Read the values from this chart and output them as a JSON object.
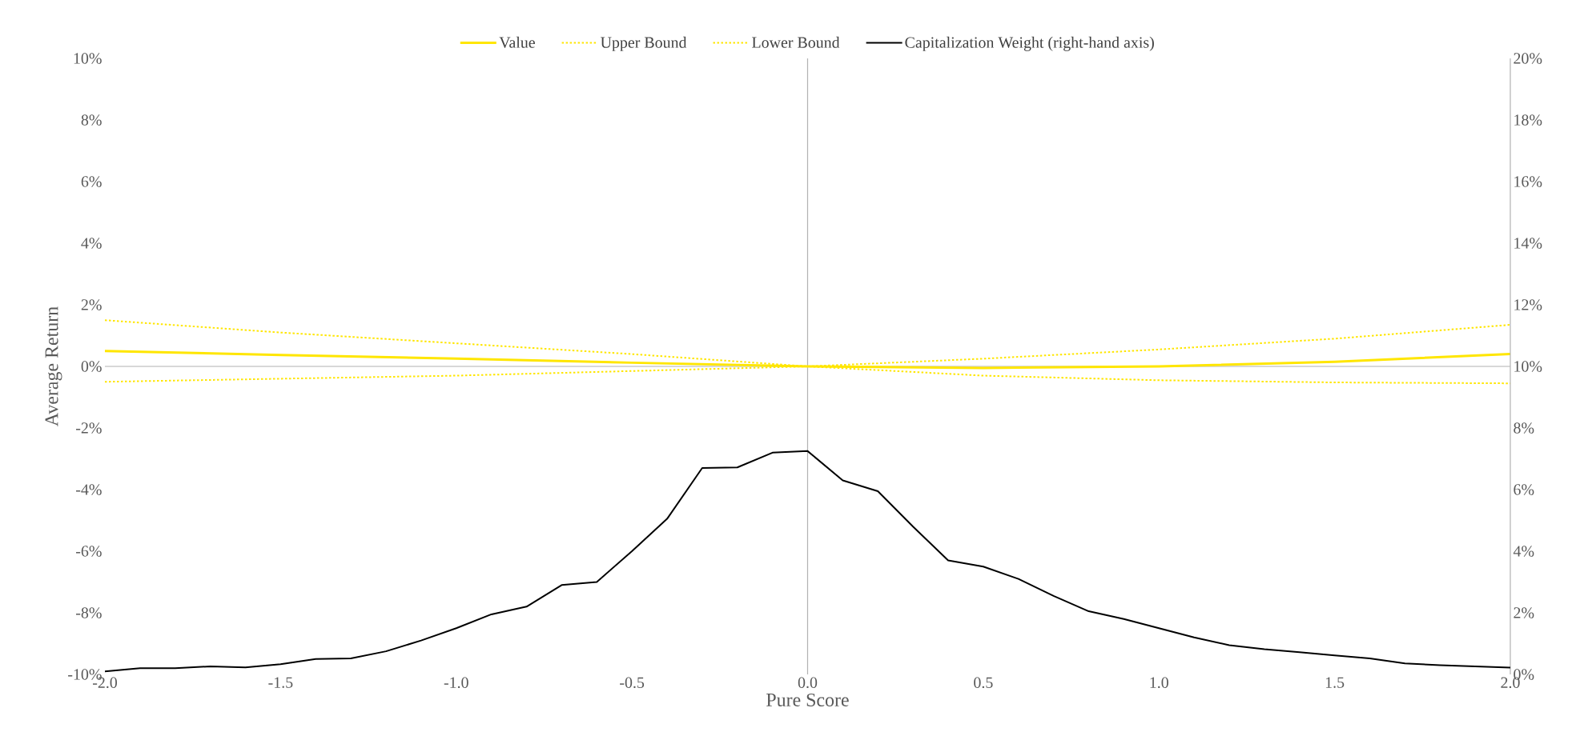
{
  "chart_data": {
    "type": "line",
    "xlabel": "Pure Score",
    "ylabel": "Average Return",
    "xlim": [
      -2,
      2
    ],
    "xticks": [
      {
        "value": -2,
        "label": "-2.0"
      },
      {
        "value": -1.5,
        "label": "-1.5"
      },
      {
        "value": -1,
        "label": "-1.0"
      },
      {
        "value": -0.5,
        "label": "-0.5"
      },
      {
        "value": 0,
        "label": "0.0"
      },
      {
        "value": 0.5,
        "label": "0.5"
      },
      {
        "value": 1,
        "label": "1.0"
      },
      {
        "value": 1.5,
        "label": "1.5"
      },
      {
        "value": 2,
        "label": "2.0"
      }
    ],
    "ylim": [
      -10,
      10
    ],
    "yticks": [
      {
        "value": -10,
        "label": "-10%"
      },
      {
        "value": -8,
        "label": "-8%"
      },
      {
        "value": -6,
        "label": "-6%"
      },
      {
        "value": -4,
        "label": "-4%"
      },
      {
        "value": -2,
        "label": "-2%"
      },
      {
        "value": 0,
        "label": "0%"
      },
      {
        "value": 2,
        "label": "2%"
      },
      {
        "value": 4,
        "label": "4%"
      },
      {
        "value": 6,
        "label": "6%"
      },
      {
        "value": 8,
        "label": "8%"
      },
      {
        "value": 10,
        "label": "10%"
      }
    ],
    "y2lim": [
      0,
      20
    ],
    "y2ticks": [
      {
        "value": 0,
        "label": "0%"
      },
      {
        "value": 2,
        "label": "2%"
      },
      {
        "value": 4,
        "label": "4%"
      },
      {
        "value": 6,
        "label": "6%"
      },
      {
        "value": 8,
        "label": "8%"
      },
      {
        "value": 10,
        "label": "10%"
      },
      {
        "value": 12,
        "label": "12%"
      },
      {
        "value": 14,
        "label": "14%"
      },
      {
        "value": 16,
        "label": "16%"
      },
      {
        "value": 18,
        "label": "18%"
      },
      {
        "value": 20,
        "label": "20%"
      }
    ],
    "legend": "top",
    "series": [
      {
        "name": "Value",
        "color": "#ffe600",
        "line_style": "solid",
        "x": [
          -2,
          -1.5,
          -1,
          -0.5,
          0,
          0.5,
          1,
          1.5,
          2
        ],
        "values": [
          0.5,
          0.37,
          0.25,
          0.12,
          0,
          -0.05,
          0,
          0.15,
          0.4
        ]
      },
      {
        "name": "Upper Bound",
        "color": "#ffe600",
        "line_style": "dotted",
        "x": [
          -2,
          -1.5,
          -1,
          -0.5,
          0,
          0.5,
          1,
          1.5,
          2
        ],
        "values": [
          1.5,
          1.1,
          0.75,
          0.4,
          0,
          0.25,
          0.55,
          0.9,
          1.35
        ]
      },
      {
        "name": "Lower Bound",
        "color": "#ffe600",
        "line_style": "dotted",
        "x": [
          -2,
          -1.5,
          -1,
          -0.5,
          0,
          0.5,
          1,
          1.5,
          2
        ],
        "values": [
          -0.5,
          -0.4,
          -0.3,
          -0.15,
          0,
          -0.3,
          -0.45,
          -0.52,
          -0.55
        ]
      },
      {
        "name": "Capitalization Weight (right-hand axis)",
        "color": "#000000",
        "line_style": "solid",
        "axis": "y2",
        "x": [
          -2,
          -1.9,
          -1.8,
          -1.7,
          -1.6,
          -1.5,
          -1.4,
          -1.3,
          -1.2,
          -1.1,
          -1,
          -0.9,
          -0.8,
          -0.7,
          -0.6,
          -0.5,
          -0.4,
          -0.3,
          -0.2,
          -0.1,
          0,
          0.1,
          0.2,
          0.3,
          0.4,
          0.5,
          0.6,
          0.7,
          0.8,
          0.9,
          1,
          1.1,
          1.2,
          1.3,
          1.4,
          1.5,
          1.6,
          1.7,
          1.8,
          1.9,
          2
        ],
        "values": [
          0.1,
          0.2,
          0.2,
          0.26,
          0.23,
          0.33,
          0.5,
          0.52,
          0.75,
          1.1,
          1.5,
          1.95,
          2.2,
          2.9,
          3.0,
          4.0,
          5.05,
          6.7,
          6.72,
          7.2,
          7.25,
          6.3,
          5.95,
          4.8,
          3.7,
          3.5,
          3.1,
          2.55,
          2.05,
          1.8,
          1.5,
          1.2,
          0.95,
          0.82,
          0.72,
          0.62,
          0.52,
          0.36,
          0.3,
          0.26,
          0.22
        ]
      }
    ]
  }
}
